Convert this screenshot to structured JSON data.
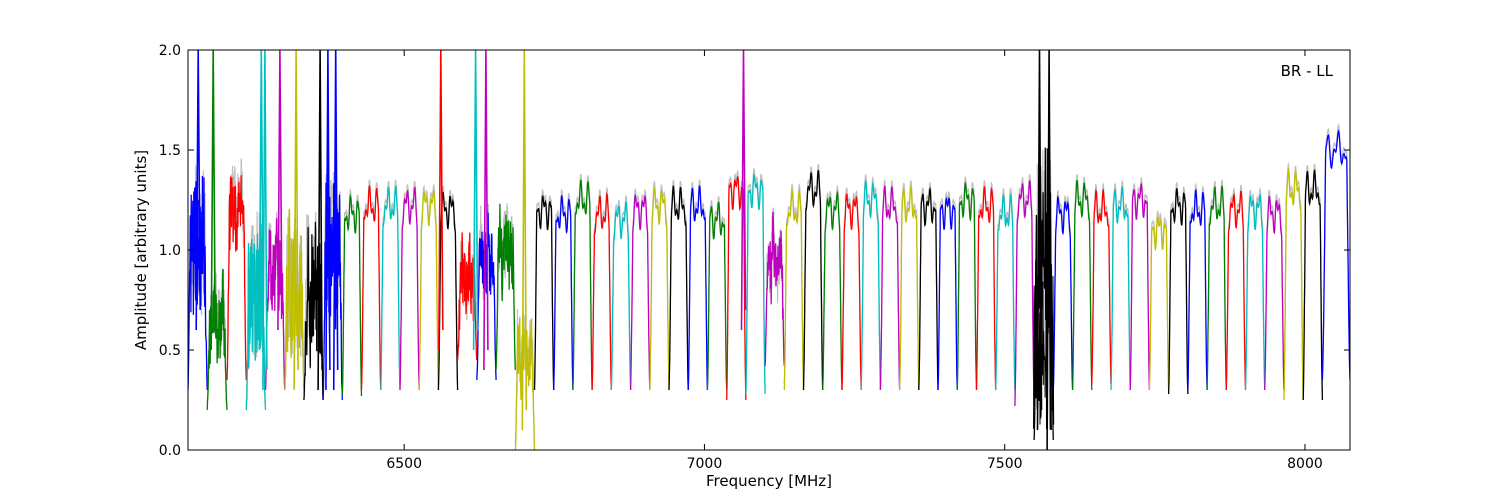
{
  "chart_data": {
    "type": "line",
    "title": "",
    "xlabel": "Frequency [MHz]",
    "ylabel": "Amplitude [arbitrary units]",
    "annotation": "BR - LL",
    "xlim": [
      6140,
      8075
    ],
    "ylim": [
      0.0,
      2.0
    ],
    "xticks": [
      6500,
      7000,
      7500,
      8000
    ],
    "xtick_labels": [
      "6500",
      "7000",
      "7500",
      "8000"
    ],
    "yticks": [
      0.0,
      0.5,
      1.0,
      1.5,
      2.0
    ],
    "ytick_labels": [
      "0.0",
      "0.5",
      "1.0",
      "1.5",
      "2.0"
    ],
    "grid": false,
    "colors": {
      "blue": "#0000ff",
      "green": "#008000",
      "red": "#ff0000",
      "cyan": "#00bfbf",
      "magenta": "#bf00bf",
      "yellow": "#bfbf00",
      "black": "#000000",
      "background_trace": "#bfbfbf"
    },
    "segment_cycle": [
      "blue",
      "green",
      "red",
      "cyan",
      "magenta",
      "yellow",
      "black"
    ],
    "segments": [
      {
        "x0": 6140,
        "x1": 6172,
        "level": 1.0,
        "floor": 0.3,
        "noise": 2,
        "color": "blue"
      },
      {
        "x0": 6172,
        "x1": 6205,
        "level": 0.65,
        "floor": 0.2,
        "noise": 1,
        "color": "green"
      },
      {
        "x0": 6205,
        "x1": 6237,
        "level": 1.2,
        "floor": 0.35,
        "noise": 1,
        "color": "red"
      },
      {
        "x0": 6237,
        "x1": 6269,
        "level": 0.8,
        "floor": 0.2,
        "noise": 2,
        "color": "cyan"
      },
      {
        "x0": 6269,
        "x1": 6301,
        "level": 0.9,
        "floor": 0.3,
        "noise": 1,
        "color": "magenta"
      },
      {
        "x0": 6301,
        "x1": 6333,
        "level": 0.8,
        "floor": 0.3,
        "noise": 2,
        "color": "yellow"
      },
      {
        "x0": 6333,
        "x1": 6365,
        "level": 0.8,
        "floor": 0.25,
        "noise": 2,
        "color": "black"
      },
      {
        "x0": 6365,
        "x1": 6397,
        "level": 1.0,
        "floor": 0.25,
        "noise": 2,
        "color": "blue"
      },
      {
        "x0": 6397,
        "x1": 6429,
        "level": 1.18,
        "floor": 0.27,
        "noise": 0,
        "color": "green"
      },
      {
        "x0": 6429,
        "x1": 6461,
        "level": 1.22,
        "floor": 0.3,
        "noise": 0,
        "color": "red"
      },
      {
        "x0": 6461,
        "x1": 6493,
        "level": 1.22,
        "floor": 0.3,
        "noise": 0,
        "color": "cyan"
      },
      {
        "x0": 6493,
        "x1": 6525,
        "level": 1.22,
        "floor": 0.3,
        "noise": 0,
        "color": "magenta"
      },
      {
        "x0": 6525,
        "x1": 6557,
        "level": 1.22,
        "floor": 0.3,
        "noise": 0,
        "color": "yellow"
      },
      {
        "x0": 6557,
        "x1": 6589,
        "level": 1.2,
        "floor": 0.3,
        "noise": 0,
        "color": "black"
      },
      {
        "x0": 6589,
        "x1": 6621,
        "level": 0.85,
        "floor": 0.45,
        "noise": 1,
        "color": "red"
      },
      {
        "x0": 6621,
        "x1": 6653,
        "level": 0.95,
        "floor": 0.35,
        "noise": 1,
        "color": "blue"
      },
      {
        "x0": 6653,
        "x1": 6685,
        "level": 1.0,
        "floor": 0.4,
        "noise": 1,
        "color": "green"
      },
      {
        "x0": 6685,
        "x1": 6717,
        "level": 0.5,
        "floor": 0.0,
        "noise": 1,
        "color": "yellow"
      },
      {
        "x0": 6717,
        "x1": 6749,
        "level": 1.2,
        "floor": 0.3,
        "noise": 0,
        "color": "black"
      },
      {
        "x0": 6749,
        "x1": 6781,
        "level": 1.18,
        "floor": 0.3,
        "noise": 0,
        "color": "blue"
      },
      {
        "x0": 6781,
        "x1": 6813,
        "level": 1.25,
        "floor": 0.3,
        "noise": 0,
        "color": "green"
      },
      {
        "x0": 6813,
        "x1": 6845,
        "level": 1.18,
        "floor": 0.3,
        "noise": 0,
        "color": "red"
      },
      {
        "x0": 6845,
        "x1": 6877,
        "level": 1.15,
        "floor": 0.3,
        "noise": 0,
        "color": "cyan"
      },
      {
        "x0": 6877,
        "x1": 6909,
        "level": 1.2,
        "floor": 0.3,
        "noise": 0,
        "color": "magenta"
      },
      {
        "x0": 6909,
        "x1": 6941,
        "level": 1.22,
        "floor": 0.3,
        "noise": 0,
        "color": "yellow"
      },
      {
        "x0": 6941,
        "x1": 6973,
        "level": 1.22,
        "floor": 0.3,
        "noise": 0,
        "color": "black"
      },
      {
        "x0": 6973,
        "x1": 7005,
        "level": 1.22,
        "floor": 0.3,
        "noise": 0,
        "color": "blue"
      },
      {
        "x0": 7005,
        "x1": 7037,
        "level": 1.15,
        "floor": 0.3,
        "noise": 0,
        "color": "green"
      },
      {
        "x0": 7037,
        "x1": 7069,
        "level": 1.3,
        "floor": 0.25,
        "noise": 0,
        "color": "red"
      },
      {
        "x0": 7069,
        "x1": 7101,
        "level": 1.3,
        "floor": 0.28,
        "noise": 0,
        "color": "cyan"
      },
      {
        "x0": 7101,
        "x1": 7133,
        "level": 0.95,
        "floor": 0.42,
        "noise": 1,
        "color": "magenta"
      },
      {
        "x0": 7133,
        "x1": 7165,
        "level": 1.2,
        "floor": 0.3,
        "noise": 0,
        "color": "yellow"
      },
      {
        "x0": 7165,
        "x1": 7197,
        "level": 1.3,
        "floor": 0.3,
        "noise": 0,
        "color": "black"
      },
      {
        "x0": 7197,
        "x1": 7229,
        "level": 1.2,
        "floor": 0.3,
        "noise": 0,
        "color": "green"
      },
      {
        "x0": 7229,
        "x1": 7261,
        "level": 1.2,
        "floor": 0.3,
        "noise": 0,
        "color": "red"
      },
      {
        "x0": 7261,
        "x1": 7293,
        "level": 1.25,
        "floor": 0.3,
        "noise": 0,
        "color": "cyan"
      },
      {
        "x0": 7293,
        "x1": 7325,
        "level": 1.22,
        "floor": 0.3,
        "noise": 0,
        "color": "magenta"
      },
      {
        "x0": 7325,
        "x1": 7357,
        "level": 1.22,
        "floor": 0.3,
        "noise": 0,
        "color": "yellow"
      },
      {
        "x0": 7357,
        "x1": 7389,
        "level": 1.22,
        "floor": 0.3,
        "noise": 0,
        "color": "black"
      },
      {
        "x0": 7389,
        "x1": 7421,
        "level": 1.2,
        "floor": 0.3,
        "noise": 0,
        "color": "blue"
      },
      {
        "x0": 7421,
        "x1": 7453,
        "level": 1.25,
        "floor": 0.3,
        "noise": 0,
        "color": "green"
      },
      {
        "x0": 7453,
        "x1": 7485,
        "level": 1.22,
        "floor": 0.3,
        "noise": 0,
        "color": "red"
      },
      {
        "x0": 7485,
        "x1": 7517,
        "level": 1.18,
        "floor": 0.3,
        "noise": 0,
        "color": "cyan"
      },
      {
        "x0": 7517,
        "x1": 7549,
        "level": 1.25,
        "floor": 0.22,
        "noise": 0,
        "color": "magenta"
      },
      {
        "x0": 7549,
        "x1": 7581,
        "level": 1.0,
        "floor": 0.05,
        "noise": 3,
        "color": "black"
      },
      {
        "x0": 7581,
        "x1": 7613,
        "level": 1.18,
        "floor": 0.3,
        "noise": 0,
        "color": "blue"
      },
      {
        "x0": 7613,
        "x1": 7645,
        "level": 1.25,
        "floor": 0.3,
        "noise": 0,
        "color": "green"
      },
      {
        "x0": 7645,
        "x1": 7677,
        "level": 1.2,
        "floor": 0.33,
        "noise": 0,
        "color": "red"
      },
      {
        "x0": 7677,
        "x1": 7709,
        "level": 1.22,
        "floor": 0.3,
        "noise": 0,
        "color": "cyan"
      },
      {
        "x0": 7709,
        "x1": 7741,
        "level": 1.25,
        "floor": 0.3,
        "noise": 0,
        "color": "magenta"
      },
      {
        "x0": 7741,
        "x1": 7773,
        "level": 1.1,
        "floor": 0.3,
        "noise": 0,
        "color": "yellow"
      },
      {
        "x0": 7773,
        "x1": 7805,
        "level": 1.22,
        "floor": 0.28,
        "noise": 0,
        "color": "black"
      },
      {
        "x0": 7805,
        "x1": 7837,
        "level": 1.2,
        "floor": 0.3,
        "noise": 0,
        "color": "blue"
      },
      {
        "x0": 7837,
        "x1": 7869,
        "level": 1.22,
        "floor": 0.3,
        "noise": 0,
        "color": "green"
      },
      {
        "x0": 7869,
        "x1": 7901,
        "level": 1.2,
        "floor": 0.3,
        "noise": 0,
        "color": "red"
      },
      {
        "x0": 7901,
        "x1": 7933,
        "level": 1.2,
        "floor": 0.3,
        "noise": 0,
        "color": "cyan"
      },
      {
        "x0": 7933,
        "x1": 7965,
        "level": 1.18,
        "floor": 0.3,
        "noise": 0,
        "color": "magenta"
      },
      {
        "x0": 7965,
        "x1": 7997,
        "level": 1.3,
        "floor": 0.25,
        "noise": 0,
        "color": "yellow"
      },
      {
        "x0": 7997,
        "x1": 8029,
        "level": 1.3,
        "floor": 0.25,
        "noise": 0,
        "color": "black"
      },
      {
        "x0": 8029,
        "x1": 8075,
        "level": 1.5,
        "floor": 0.35,
        "noise": 0,
        "color": "blue"
      }
    ],
    "spikes": [
      {
        "x": 6157,
        "y0": 0.6,
        "y1": 2.0,
        "color": "blue"
      },
      {
        "x": 6182,
        "y0": 0.5,
        "y1": 2.0,
        "color": "green"
      },
      {
        "x": 6262,
        "y0": 0.5,
        "y1": 2.0,
        "color": "cyan"
      },
      {
        "x": 6268,
        "y0": 0.3,
        "y1": 2.0,
        "color": "cyan"
      },
      {
        "x": 6293,
        "y0": 0.6,
        "y1": 2.0,
        "color": "magenta"
      },
      {
        "x": 6320,
        "y0": 0.3,
        "y1": 2.0,
        "color": "yellow"
      },
      {
        "x": 6360,
        "y0": 0.3,
        "y1": 2.0,
        "color": "black"
      },
      {
        "x": 6373,
        "y0": 0.3,
        "y1": 2.0,
        "color": "blue"
      },
      {
        "x": 6386,
        "y0": 0.3,
        "y1": 2.0,
        "color": "blue"
      },
      {
        "x": 6561,
        "y0": 0.5,
        "y1": 2.0,
        "color": "red"
      },
      {
        "x": 6619,
        "y0": 0.5,
        "y1": 2.0,
        "color": "cyan"
      },
      {
        "x": 6636,
        "y0": 0.4,
        "y1": 2.0,
        "color": "magenta"
      },
      {
        "x": 6700,
        "y0": 0.1,
        "y1": 2.0,
        "color": "yellow"
      },
      {
        "x": 7065,
        "y0": 0.6,
        "y1": 2.0,
        "color": "magenta"
      },
      {
        "x": 7558,
        "y0": 0.1,
        "y1": 2.0,
        "color": "black"
      },
      {
        "x": 7574,
        "y0": 0.0,
        "y1": 2.0,
        "color": "black"
      }
    ]
  }
}
